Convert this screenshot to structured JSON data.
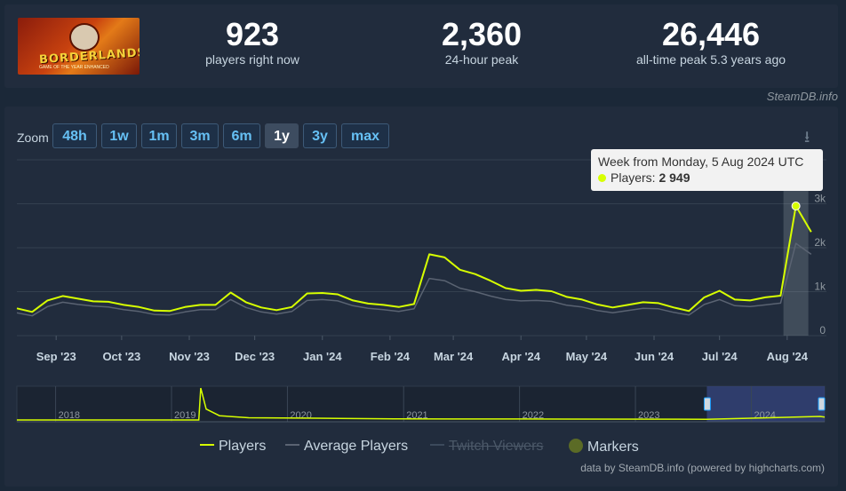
{
  "game": {
    "logo_text": "BORDERLANDS",
    "logo_sub": "GAME OF THE YEAR ENHANCED"
  },
  "stats": [
    {
      "value": "923",
      "label": "players right now"
    },
    {
      "value": "2,360",
      "label": "24-hour peak"
    },
    {
      "value": "26,446",
      "label": "all-time peak 5.3 years ago"
    }
  ],
  "credit_top": "SteamDB.info",
  "zoom": {
    "label": "Zoom",
    "buttons": [
      "48h",
      "1w",
      "1m",
      "3m",
      "6m",
      "1y",
      "3y",
      "max"
    ],
    "active": "1y"
  },
  "tooltip": {
    "title": "Week from Monday, 5 Aug 2024 UTC",
    "series": "Players:",
    "value": "2 949"
  },
  "legend": [
    {
      "name": "Players",
      "color": "#d7ff00",
      "state": "on"
    },
    {
      "name": "Average Players",
      "color": "#5a6372",
      "state": "on"
    },
    {
      "name": "Twitch Viewers",
      "color": "#3c4a5c",
      "state": "off"
    },
    {
      "name": "Markers",
      "color": "#5b6b26",
      "state": "on"
    }
  ],
  "credit_bottom": "data by SteamDB.info (powered by highcharts.com)",
  "colors": {
    "players": "#d7ff00",
    "average": "#5a6372",
    "bg": "#1b2838",
    "panel": "#212c3d",
    "navigator_sel": "#35447a"
  },
  "chart_data": {
    "type": "line",
    "title": "",
    "xlabel": "",
    "ylabel": "",
    "ylim": [
      0,
      4000
    ],
    "y_ticks": [
      "0",
      "1k",
      "2k",
      "3k"
    ],
    "x_ticks": [
      "Sep '23",
      "Oct '23",
      "Nov '23",
      "Dec '23",
      "Jan '24",
      "Feb '24",
      "Mar '24",
      "Apr '24",
      "May '24",
      "Jun '24",
      "Jul '24",
      "Aug '24"
    ],
    "x_tick_dates": [
      "2023-09-01",
      "2023-10-01",
      "2023-11-01",
      "2023-12-01",
      "2024-01-01",
      "2024-02-01",
      "2024-03-01",
      "2024-04-01",
      "2024-05-01",
      "2024-06-01",
      "2024-07-01",
      "2024-08-01"
    ],
    "xlim": [
      "2023-08-14",
      "2024-08-19"
    ],
    "grid": true,
    "highlight": {
      "x": "2024-08-05",
      "value": 2949
    },
    "series": [
      {
        "name": "Players",
        "x": [
          "2023-08-14",
          "2023-08-21",
          "2023-08-28",
          "2023-09-04",
          "2023-09-11",
          "2023-09-18",
          "2023-09-25",
          "2023-10-02",
          "2023-10-09",
          "2023-10-16",
          "2023-10-23",
          "2023-10-30",
          "2023-11-06",
          "2023-11-13",
          "2023-11-20",
          "2023-11-27",
          "2023-12-04",
          "2023-12-11",
          "2023-12-18",
          "2023-12-25",
          "2024-01-01",
          "2024-01-08",
          "2024-01-15",
          "2024-01-22",
          "2024-01-29",
          "2024-02-05",
          "2024-02-12",
          "2024-02-19",
          "2024-02-26",
          "2024-03-04",
          "2024-03-11",
          "2024-03-18",
          "2024-03-25",
          "2024-04-01",
          "2024-04-08",
          "2024-04-15",
          "2024-04-22",
          "2024-04-29",
          "2024-05-06",
          "2024-05-13",
          "2024-05-20",
          "2024-05-27",
          "2024-06-03",
          "2024-06-10",
          "2024-06-17",
          "2024-06-24",
          "2024-07-01",
          "2024-07-08",
          "2024-07-15",
          "2024-07-22",
          "2024-07-29",
          "2024-08-05",
          "2024-08-12"
        ],
        "values": [
          620,
          540,
          800,
          900,
          840,
          780,
          770,
          700,
          650,
          570,
          560,
          650,
          700,
          700,
          980,
          760,
          640,
          580,
          650,
          960,
          970,
          940,
          800,
          730,
          700,
          650,
          720,
          1850,
          1780,
          1500,
          1400,
          1250,
          1080,
          1020,
          1040,
          1010,
          880,
          820,
          710,
          640,
          700,
          760,
          740,
          640,
          560,
          870,
          1020,
          820,
          800,
          870,
          910,
          2949,
          2360
        ]
      },
      {
        "name": "Average Players",
        "x": [
          "2023-08-14",
          "2023-08-21",
          "2023-08-28",
          "2023-09-04",
          "2023-09-11",
          "2023-09-18",
          "2023-09-25",
          "2023-10-02",
          "2023-10-09",
          "2023-10-16",
          "2023-10-23",
          "2023-10-30",
          "2023-11-06",
          "2023-11-13",
          "2023-11-20",
          "2023-11-27",
          "2023-12-04",
          "2023-12-11",
          "2023-12-18",
          "2023-12-25",
          "2024-01-01",
          "2024-01-08",
          "2024-01-15",
          "2024-01-22",
          "2024-01-29",
          "2024-02-05",
          "2024-02-12",
          "2024-02-19",
          "2024-02-26",
          "2024-03-04",
          "2024-03-11",
          "2024-03-18",
          "2024-03-25",
          "2024-04-01",
          "2024-04-08",
          "2024-04-15",
          "2024-04-22",
          "2024-04-29",
          "2024-05-06",
          "2024-05-13",
          "2024-05-20",
          "2024-05-27",
          "2024-06-03",
          "2024-06-10",
          "2024-06-17",
          "2024-06-24",
          "2024-07-01",
          "2024-07-08",
          "2024-07-15",
          "2024-07-22",
          "2024-07-29",
          "2024-08-05",
          "2024-08-12"
        ],
        "values": [
          520,
          450,
          660,
          760,
          710,
          670,
          650,
          590,
          550,
          480,
          470,
          540,
          590,
          590,
          820,
          640,
          540,
          490,
          550,
          800,
          820,
          790,
          680,
          620,
          590,
          550,
          610,
          1300,
          1250,
          1080,
          1000,
          900,
          820,
          790,
          800,
          780,
          690,
          650,
          570,
          520,
          570,
          620,
          610,
          530,
          470,
          710,
          820,
          680,
          660,
          700,
          740,
          2100,
          1850
        ]
      }
    ],
    "navigator": {
      "x_ticks": [
        "2018",
        "2019",
        "2020",
        "2021",
        "2022",
        "2023",
        "2024"
      ],
      "selected": [
        "2023-08-14",
        "2024-08-19"
      ]
    }
  }
}
